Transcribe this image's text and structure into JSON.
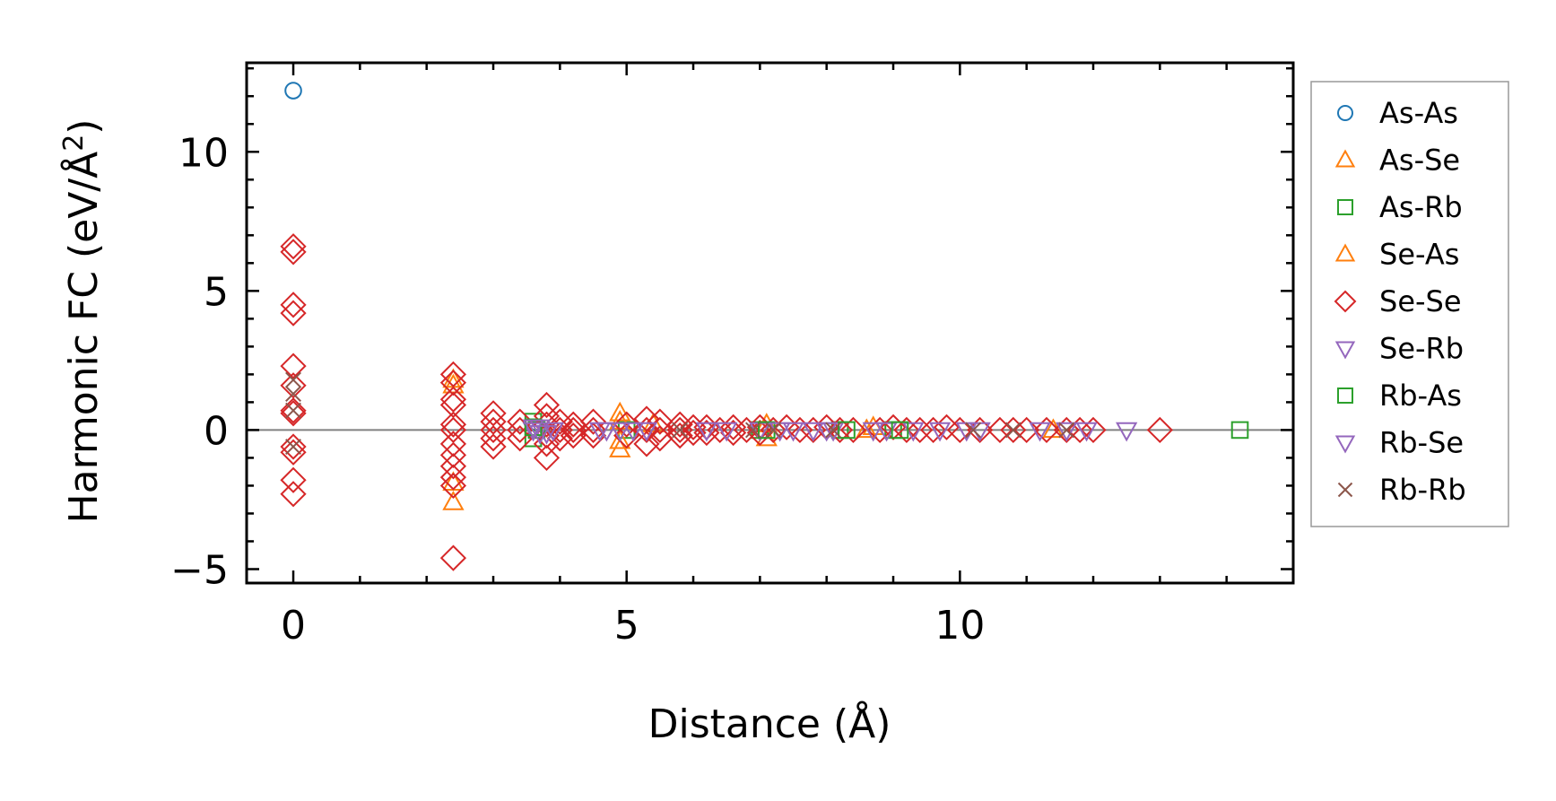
{
  "chart_data": {
    "type": "scatter",
    "xlabel": "Distance (Å)",
    "ylabel_main": "Harmonic FC (eV/Å",
    "ylabel_sup": "2",
    "ylabel_close": ")",
    "xlim": [
      -0.7,
      15.0
    ],
    "ylim": [
      -5.5,
      13.2
    ],
    "x_ticks": [
      0,
      5,
      10
    ],
    "x_tick_labels": [
      "0",
      "5",
      "10"
    ],
    "x_minor_step": 1,
    "y_ticks": [
      -5,
      0,
      5,
      10
    ],
    "y_tick_labels": [
      "−5",
      "0",
      "5",
      "10"
    ],
    "y_minor_step": 1,
    "zero_line": true,
    "legend_position": "right-outside",
    "series": [
      {
        "name": "As-As",
        "marker": "circle",
        "color": "#1f77b4",
        "points": [
          [
            0,
            12.2
          ]
        ]
      },
      {
        "name": "As-Se",
        "marker": "triangle-up",
        "color": "#ff7f0e",
        "points": [
          [
            2.4,
            1.8
          ],
          [
            2.4,
            -2.6
          ],
          [
            2.4,
            -1.9
          ],
          [
            4.9,
            0.6
          ],
          [
            4.9,
            -0.7
          ],
          [
            5.4,
            0.2
          ],
          [
            7.1,
            -0.3
          ],
          [
            8.6,
            0.0
          ],
          [
            11.4,
            0.0
          ]
        ]
      },
      {
        "name": "As-Rb",
        "marker": "square",
        "color": "#2ca02c",
        "points": [
          [
            3.6,
            0.3
          ],
          [
            3.6,
            -0.3
          ],
          [
            3.65,
            0.0
          ],
          [
            5.0,
            0.0
          ],
          [
            7.0,
            0.0
          ],
          [
            8.2,
            0.0
          ],
          [
            9.0,
            0.0
          ],
          [
            14.2,
            0.0
          ]
        ]
      },
      {
        "name": "Se-As",
        "marker": "triangle-up",
        "color": "#ff7f0e",
        "points": [
          [
            2.4,
            1.6
          ],
          [
            4.9,
            0.3
          ],
          [
            4.9,
            -0.4
          ],
          [
            7.1,
            0.2
          ],
          [
            8.7,
            0.1
          ]
        ]
      },
      {
        "name": "Se-Se",
        "marker": "diamond",
        "color": "#d62728",
        "points": [
          [
            0,
            6.6
          ],
          [
            0,
            6.4
          ],
          [
            0,
            4.5
          ],
          [
            0,
            4.2
          ],
          [
            0,
            2.3
          ],
          [
            0,
            1.6
          ],
          [
            0,
            0.7
          ],
          [
            0,
            0.6
          ],
          [
            0,
            -0.6
          ],
          [
            0,
            -0.8
          ],
          [
            0,
            -1.8
          ],
          [
            0,
            -2.3
          ],
          [
            2.4,
            2.0
          ],
          [
            2.4,
            1.7
          ],
          [
            2.4,
            1.1
          ],
          [
            2.4,
            0.9
          ],
          [
            2.4,
            0.2
          ],
          [
            2.4,
            0.0
          ],
          [
            2.4,
            -0.5
          ],
          [
            2.4,
            -0.9
          ],
          [
            2.4,
            -1.3
          ],
          [
            2.4,
            -1.7
          ],
          [
            2.4,
            -2.0
          ],
          [
            2.4,
            -4.6
          ],
          [
            3.0,
            0.6
          ],
          [
            3.0,
            0.3
          ],
          [
            3.0,
            0.0
          ],
          [
            3.0,
            -0.3
          ],
          [
            3.0,
            -0.6
          ],
          [
            3.4,
            0.3
          ],
          [
            3.4,
            0.0
          ],
          [
            3.4,
            -0.3
          ],
          [
            3.8,
            0.9
          ],
          [
            3.8,
            0.5
          ],
          [
            3.8,
            0.2
          ],
          [
            3.8,
            -0.2
          ],
          [
            3.8,
            -0.5
          ],
          [
            3.8,
            -1.0
          ],
          [
            4.0,
            0.3
          ],
          [
            4.0,
            0.0
          ],
          [
            4.0,
            -0.3
          ],
          [
            4.2,
            0.2
          ],
          [
            4.2,
            0.0
          ],
          [
            4.2,
            -0.2
          ],
          [
            4.5,
            0.3
          ],
          [
            4.5,
            0.0
          ],
          [
            4.5,
            -0.2
          ],
          [
            5.0,
            0.2
          ],
          [
            5.0,
            -0.2
          ],
          [
            5.3,
            0.4
          ],
          [
            5.3,
            0.0
          ],
          [
            5.3,
            -0.5
          ],
          [
            5.5,
            0.3
          ],
          [
            5.5,
            0.0
          ],
          [
            5.5,
            -0.3
          ],
          [
            5.8,
            0.2
          ],
          [
            5.8,
            0.0
          ],
          [
            5.8,
            -0.2
          ],
          [
            6.0,
            0.1
          ],
          [
            6.0,
            -0.1
          ],
          [
            6.2,
            0.1
          ],
          [
            6.2,
            -0.1
          ],
          [
            6.4,
            0.0
          ],
          [
            6.6,
            0.1
          ],
          [
            6.6,
            -0.1
          ],
          [
            6.8,
            0.0
          ],
          [
            7.0,
            0.1
          ],
          [
            7.0,
            -0.1
          ],
          [
            7.2,
            0.0
          ],
          [
            7.4,
            0.1
          ],
          [
            7.6,
            0.0
          ],
          [
            7.8,
            0.0
          ],
          [
            8.0,
            0.1
          ],
          [
            8.2,
            0.0
          ],
          [
            8.4,
            0.0
          ],
          [
            8.8,
            0.0
          ],
          [
            9.0,
            0.1
          ],
          [
            9.2,
            0.0
          ],
          [
            9.4,
            0.0
          ],
          [
            9.6,
            0.0
          ],
          [
            9.8,
            0.1
          ],
          [
            10.0,
            0.0
          ],
          [
            10.3,
            0.0
          ],
          [
            10.6,
            0.0
          ],
          [
            10.8,
            0.0
          ],
          [
            11.0,
            0.0
          ],
          [
            11.3,
            0.0
          ],
          [
            11.6,
            0.0
          ],
          [
            11.8,
            0.0
          ],
          [
            12.0,
            0.0
          ],
          [
            13.0,
            0.0
          ]
        ]
      },
      {
        "name": "Se-Rb",
        "marker": "triangle-down",
        "color": "#9467bd",
        "points": [
          [
            3.6,
            0.0
          ],
          [
            3.7,
            0.1
          ],
          [
            3.8,
            -0.1
          ],
          [
            4.6,
            0.0
          ],
          [
            4.9,
            0.0
          ],
          [
            5.3,
            0.0
          ],
          [
            6.5,
            0.0
          ],
          [
            7.0,
            0.0
          ],
          [
            7.5,
            0.0
          ],
          [
            7.8,
            0.0
          ],
          [
            8.1,
            0.0
          ],
          [
            8.9,
            0.0
          ],
          [
            9.3,
            0.0
          ],
          [
            9.7,
            0.0
          ],
          [
            10.3,
            0.0
          ],
          [
            11.2,
            0.0
          ],
          [
            11.6,
            0.0
          ],
          [
            12.5,
            0.0
          ]
        ]
      },
      {
        "name": "Rb-As",
        "marker": "square",
        "color": "#2ca02c",
        "points": [
          [
            3.6,
            0.1
          ],
          [
            7.1,
            0.0
          ],
          [
            8.3,
            0.0
          ],
          [
            9.1,
            0.0
          ]
        ]
      },
      {
        "name": "Rb-Se",
        "marker": "triangle-down",
        "color": "#9467bd",
        "points": [
          [
            3.6,
            0.1
          ],
          [
            3.7,
            -0.1
          ],
          [
            3.9,
            0.0
          ],
          [
            4.7,
            0.0
          ],
          [
            5.1,
            0.0
          ],
          [
            6.2,
            0.0
          ],
          [
            7.3,
            0.0
          ],
          [
            8.0,
            0.0
          ],
          [
            8.7,
            0.0
          ],
          [
            10.1,
            0.0
          ],
          [
            11.9,
            0.0
          ]
        ]
      },
      {
        "name": "Rb-Rb",
        "marker": "x",
        "color": "#8c564b",
        "points": [
          [
            0,
            1.8
          ],
          [
            0,
            1.3
          ],
          [
            0,
            0.7
          ],
          [
            0,
            -0.6
          ],
          [
            5.8,
            0.0
          ],
          [
            6.9,
            0.0
          ],
          [
            7.2,
            0.0
          ],
          [
            8.1,
            0.0
          ],
          [
            10.2,
            0.0
          ],
          [
            10.8,
            0.0
          ],
          [
            11.6,
            0.0
          ]
        ]
      }
    ]
  }
}
